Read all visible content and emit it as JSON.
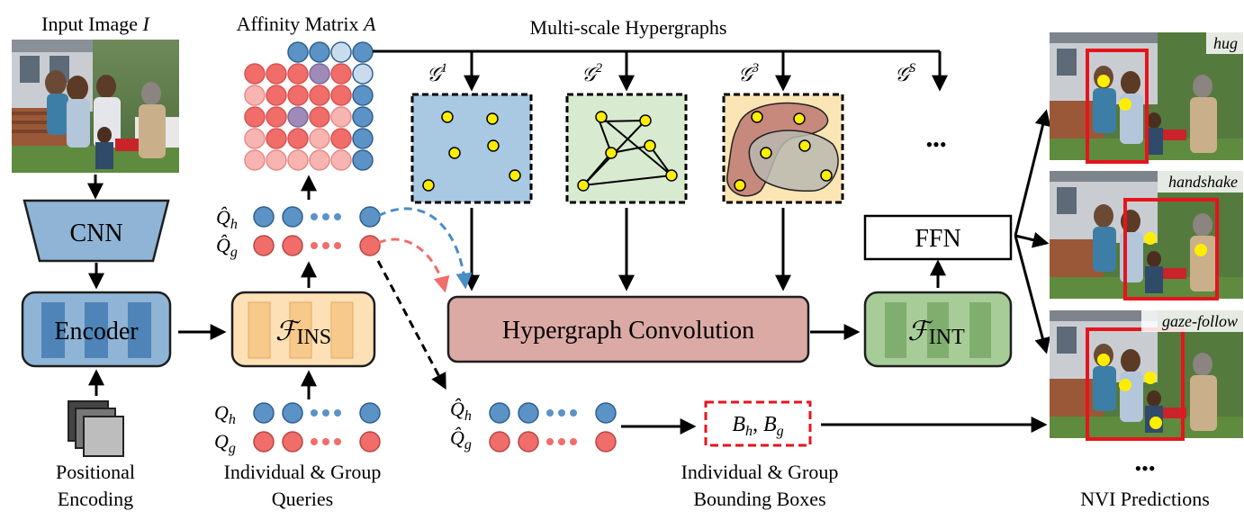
{
  "input": {
    "title": "Input Image",
    "symbol": "I"
  },
  "cnn": {
    "label": "CNN"
  },
  "encoder": {
    "label": "Encoder"
  },
  "positional": {
    "line1": "Positional",
    "line2": "Encoding"
  },
  "affinity": {
    "title": "Affinity Matrix",
    "symbol": "A"
  },
  "multiscale": {
    "title": "Multi-scale Hypergraphs"
  },
  "graphs": {
    "g1": "𝒢",
    "g1_sup": "1",
    "g2": "𝒢",
    "g2_sup": "2",
    "g3": "𝒢",
    "g3_sup": "3",
    "gs": "𝒢",
    "gs_sup": "S",
    "ellipsis": "•••"
  },
  "fins": {
    "base": "ℱ",
    "sub": "INS"
  },
  "fint": {
    "base": "ℱ",
    "sub": "INT"
  },
  "ffn": {
    "label": "FFN"
  },
  "hconv": {
    "label": "Hypergraph Convolution"
  },
  "queries": {
    "qh_hat": "Q̂",
    "qh_sub": "h",
    "qg_hat": "Q̂",
    "qg_sub": "g",
    "qh": "Q",
    "qh2_sub": "h",
    "qg": "Q",
    "qg2_sub": "g",
    "label_line1": "Individual & Group",
    "label_line2": "Queries"
  },
  "boxes": {
    "bh": "B",
    "bh_sub": "h",
    "sep": ",",
    "bg": "B",
    "bg_sub": "g",
    "label_line1": "Individual & Group",
    "label_line2": "Bounding Boxes"
  },
  "predictions": {
    "title": "NVI Predictions",
    "tags": [
      "hug",
      "handshake",
      "gaze-follow"
    ],
    "ellipsis": "•••"
  },
  "colors": {
    "blue_box": "#8fb4d6",
    "blue_dark": "#2e5a87",
    "orange_box": "#fde0b5",
    "orange_line": "#d4974a",
    "green_box": "#a7cc98",
    "green_line": "#4a7440",
    "pink_box": "#dcaaa4",
    "pink_line": "#6a3a36",
    "query_blue": "#5b93c7",
    "query_red": "#f06d6a",
    "pred_box": "#e6141c",
    "yellow": "#ffee00"
  }
}
